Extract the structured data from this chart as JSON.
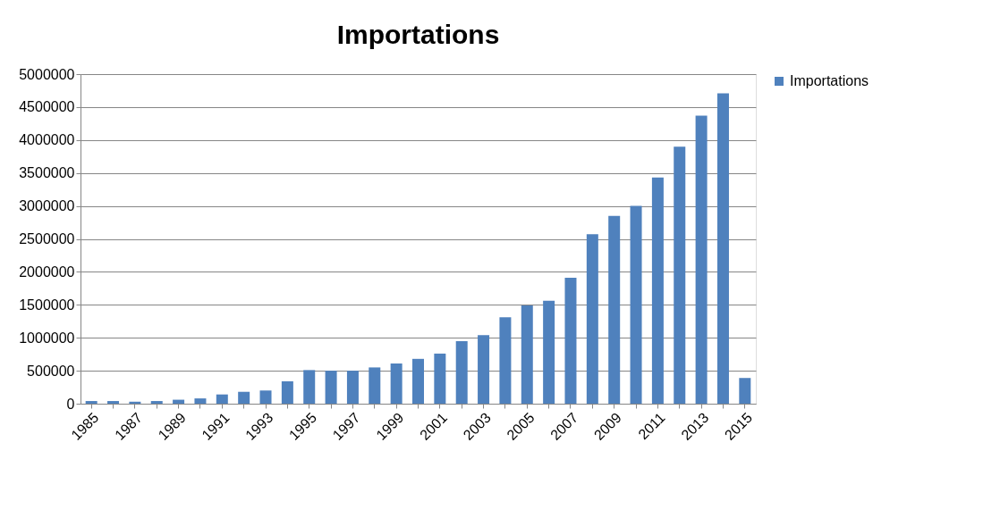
{
  "chart_data": {
    "type": "bar",
    "title": "Importations",
    "categories": [
      "1985",
      null,
      "1987",
      null,
      "1989",
      null,
      "1991",
      null,
      "1993",
      null,
      "1995",
      null,
      "1997",
      null,
      "1999",
      null,
      "2001",
      null,
      "2003",
      null,
      "2005",
      null,
      "2007",
      null,
      "2009",
      null,
      "2011",
      null,
      "2013",
      null,
      "2015"
    ],
    "series": [
      {
        "name": "Importations",
        "color": "#4f81bd",
        "values": [
          40000,
          40000,
          30000,
          40000,
          60000,
          80000,
          140000,
          180000,
          200000,
          340000,
          510000,
          500000,
          500000,
          550000,
          610000,
          680000,
          760000,
          950000,
          1040000,
          1310000,
          1490000,
          1560000,
          1910000,
          2570000,
          2850000,
          3000000,
          3430000,
          3900000,
          4370000,
          4710000,
          390000
        ]
      }
    ],
    "ylim": [
      0,
      5000000
    ],
    "yticks": [
      0,
      500000,
      1000000,
      1500000,
      2000000,
      2500000,
      3000000,
      3500000,
      4000000,
      4500000,
      5000000
    ],
    "grid": "y",
    "legend": "right"
  }
}
